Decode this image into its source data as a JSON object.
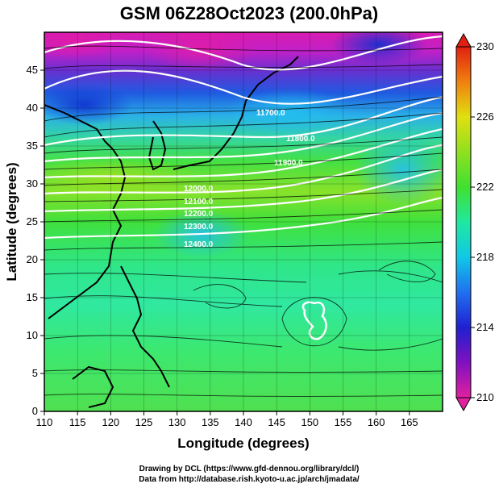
{
  "title": "GSM 06Z28Oct2023 (200.0hPa)",
  "xaxis": {
    "label": "Longitude (degrees)",
    "ticks": [
      "110",
      "115",
      "120",
      "125",
      "130",
      "135",
      "140",
      "145",
      "150",
      "155",
      "160",
      "165"
    ],
    "range": [
      110,
      170
    ]
  },
  "yaxis": {
    "label": "Latitude (degrees)",
    "ticks": [
      "0",
      "5",
      "10",
      "15",
      "20",
      "25",
      "30",
      "35",
      "40",
      "45"
    ],
    "range": [
      0,
      50
    ]
  },
  "colorbar": {
    "ticks": [
      "210",
      "214",
      "218",
      "222",
      "226",
      "230"
    ],
    "range": [
      210,
      230
    ],
    "colors": [
      "#e020a0",
      "#8010c0",
      "#2020d0",
      "#2080f0",
      "#10d8d8",
      "#20e890",
      "#40e030",
      "#a0e020",
      "#f0d000",
      "#f07000",
      "#e02010"
    ]
  },
  "contour_labels": [
    "11700.0",
    "11800.0",
    "11900.0",
    "12000.0",
    "12100.0",
    "12200.0",
    "12300.0",
    "12400.0"
  ],
  "credits": {
    "line1": "Drawing by DCL (https://www.gfd-dennou.org/library/dcl/)",
    "line2": "Data from http://database.rish.kyoto-u.ac.jp/arch/jmadata/"
  }
}
